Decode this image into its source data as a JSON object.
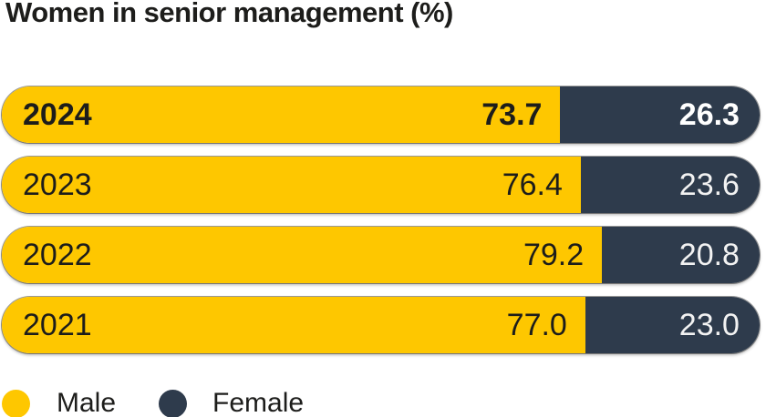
{
  "title": "Women in senior management (%)",
  "colors": {
    "male": "#FEC700",
    "female": "#2E3B4C",
    "text": "#1D1D1B",
    "value_text_on_dark": "#FFFFFF",
    "background": "#FFFFFF"
  },
  "chart_data": {
    "type": "bar",
    "orientation": "horizontal",
    "stacked": true,
    "unit": "%",
    "title": "Women in senior management (%)",
    "categories": [
      "2024",
      "2023",
      "2022",
      "2021"
    ],
    "series": [
      {
        "name": "Male",
        "color": "#FEC700",
        "values": [
          73.7,
          76.4,
          79.2,
          77.0
        ]
      },
      {
        "name": "Female",
        "color": "#2E3B4C",
        "values": [
          26.3,
          23.6,
          20.8,
          23.0
        ]
      }
    ],
    "xlim": [
      0,
      100
    ],
    "grid": false,
    "legend_position": "bottom",
    "highlighted_category": "2024",
    "data_labels": true
  },
  "bars": [
    {
      "year": "2024",
      "male": "73.7",
      "female": "26.3",
      "male_pct": 73.7,
      "female_pct": 26.3
    },
    {
      "year": "2023",
      "male": "76.4",
      "female": "23.6",
      "male_pct": 76.4,
      "female_pct": 23.6
    },
    {
      "year": "2022",
      "male": "79.2",
      "female": "20.8",
      "male_pct": 79.2,
      "female_pct": 20.8
    },
    {
      "year": "2021",
      "male": "77.0",
      "female": "23.0",
      "male_pct": 77.0,
      "female_pct": 23.0
    }
  ],
  "legend": [
    {
      "label": "Male",
      "color": "#FEC700"
    },
    {
      "label": "Female",
      "color": "#2E3B4C"
    }
  ]
}
